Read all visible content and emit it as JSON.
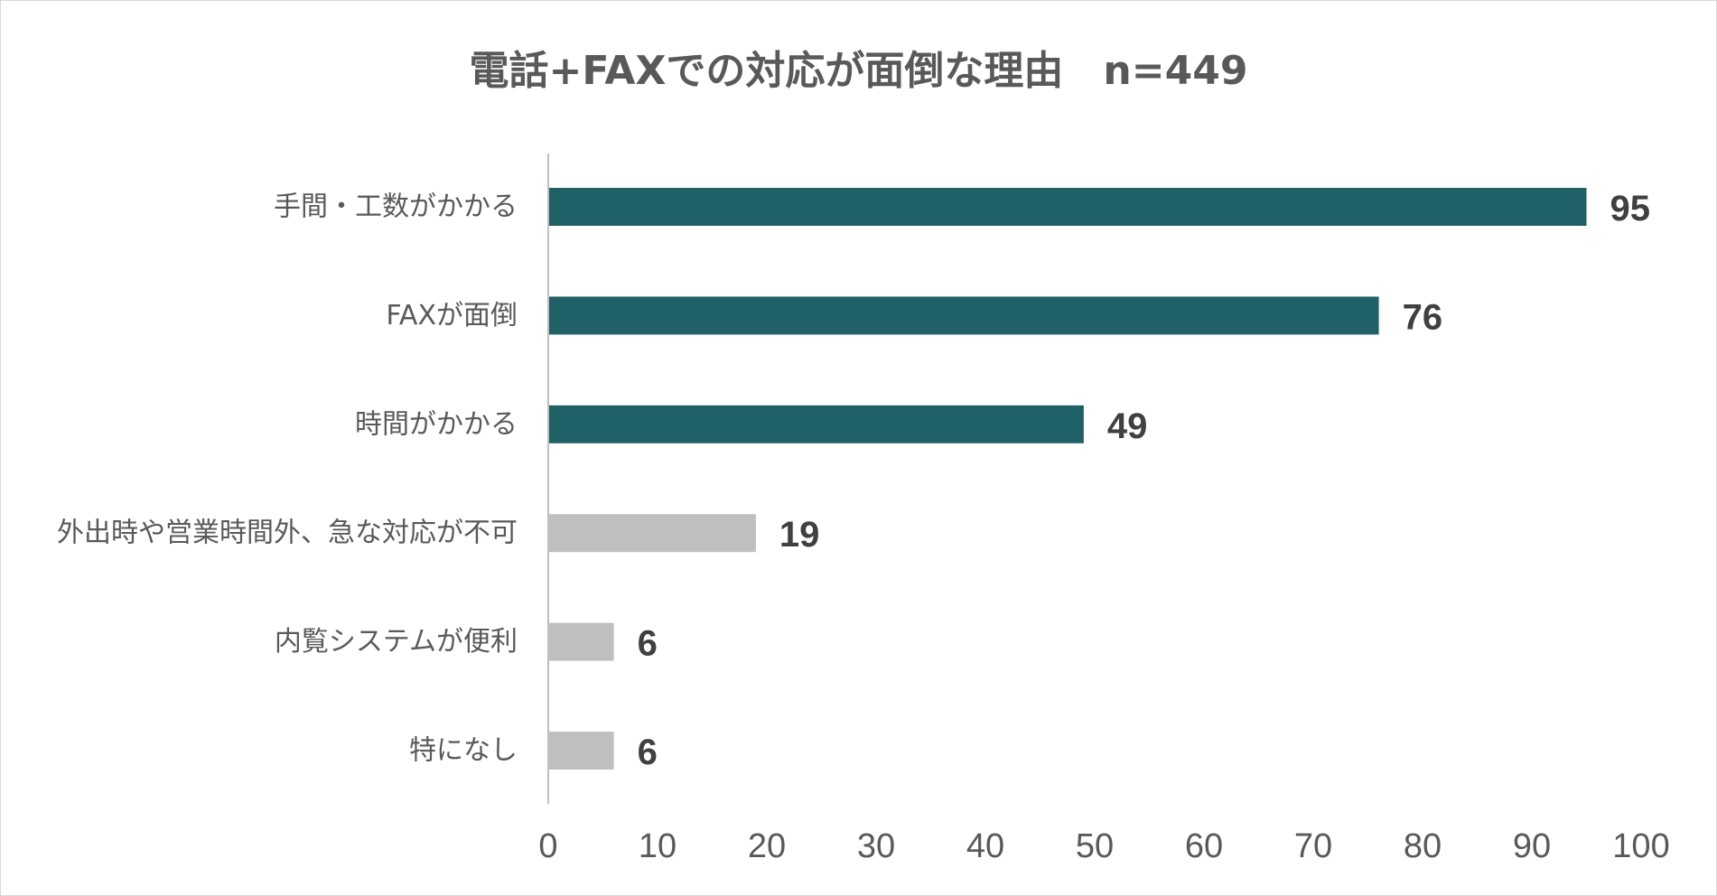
{
  "chart_data": {
    "type": "bar",
    "orientation": "horizontal",
    "title": "電話+FAXでの対応が面倒な理由　n=449",
    "xlabel": "",
    "ylabel": "",
    "xlim": [
      0,
      100
    ],
    "ticks": [
      0,
      10,
      20,
      30,
      40,
      50,
      60,
      70,
      80,
      90,
      100
    ],
    "grid": false,
    "legend": "none",
    "categories": [
      "手間・工数がかかる",
      "FAXが面倒",
      "時間がかかる",
      "外出時や営業時間外、急な対応が不可",
      "内覧システムが便利",
      "特になし"
    ],
    "values": [
      95,
      76,
      49,
      19,
      6,
      6
    ],
    "bar_colors": [
      "#1f6166",
      "#1f6166",
      "#1f6166",
      "#bfbfbf",
      "#bfbfbf",
      "#bfbfbf"
    ]
  }
}
